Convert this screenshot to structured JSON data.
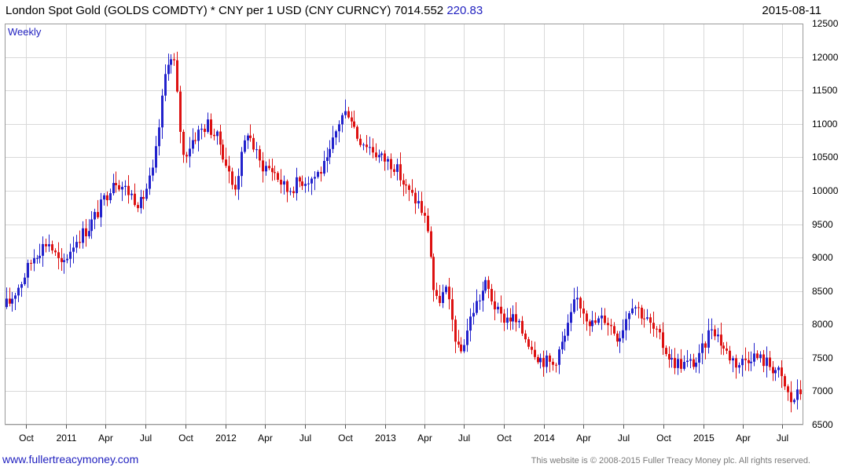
{
  "header": {
    "title": "London Spot Gold (GOLDS COMDTY) * CNY per 1 USD (CNY CURNCY) 7014.552",
    "last_change": "220.83",
    "date": "2015-08-11"
  },
  "period_label": "Weekly",
  "footer": {
    "website": "www.fullertreacymoney.com",
    "copyright": "This website is © 2008-2015 Fuller Treacy Money plc. All rights reserved."
  },
  "colors": {
    "up": "#2222cc",
    "down": "#dd1111",
    "grid": "#d9d9d9"
  },
  "chart_data": {
    "type": "candlestick",
    "frequency": "weekly",
    "xlabel": "",
    "ylabel": "",
    "ylim": [
      6500,
      12500
    ],
    "yticks": [
      6500,
      7000,
      7500,
      8000,
      8500,
      9000,
      9500,
      10000,
      10500,
      11000,
      11500,
      12000,
      12500
    ],
    "xticks": [
      {
        "label": "Oct",
        "date": "2010-10-01"
      },
      {
        "label": "2011",
        "date": "2011-01-01"
      },
      {
        "label": "Apr",
        "date": "2011-04-01"
      },
      {
        "label": "Jul",
        "date": "2011-07-01"
      },
      {
        "label": "Oct",
        "date": "2011-10-01"
      },
      {
        "label": "2012",
        "date": "2012-01-01"
      },
      {
        "label": "Apr",
        "date": "2012-04-01"
      },
      {
        "label": "Jul",
        "date": "2012-07-01"
      },
      {
        "label": "Oct",
        "date": "2012-10-01"
      },
      {
        "label": "2013",
        "date": "2013-01-01"
      },
      {
        "label": "Apr",
        "date": "2013-04-01"
      },
      {
        "label": "Jul",
        "date": "2013-07-01"
      },
      {
        "label": "Oct",
        "date": "2013-10-01"
      },
      {
        "label": "2014",
        "date": "2014-01-01"
      },
      {
        "label": "Apr",
        "date": "2014-04-01"
      },
      {
        "label": "Jul",
        "date": "2014-07-01"
      },
      {
        "label": "Oct",
        "date": "2014-10-01"
      },
      {
        "label": "2015",
        "date": "2015-01-01"
      },
      {
        "label": "Apr",
        "date": "2015-04-01"
      },
      {
        "label": "Jul",
        "date": "2015-07-01"
      }
    ],
    "series": [
      {
        "dates": [
          "2010-08-20",
          "2010-09-20",
          "2010-10-20",
          "2010-11-20",
          "2010-12-20",
          "2011-01-20",
          "2011-02-20",
          "2011-03-20",
          "2011-04-20",
          "2011-05-20",
          "2011-06-20",
          "2011-07-20",
          "2011-08-20",
          "2011-09-05",
          "2011-09-25",
          "2011-10-20",
          "2011-11-20",
          "2011-12-20",
          "2012-01-20",
          "2012-02-20",
          "2012-03-20",
          "2012-04-20",
          "2012-05-20",
          "2012-06-20",
          "2012-07-20",
          "2012-08-20",
          "2012-09-20",
          "2012-10-10",
          "2012-10-30",
          "2012-11-20",
          "2012-12-20",
          "2013-01-20",
          "2013-02-20",
          "2013-03-20",
          "2013-04-10",
          "2013-04-25",
          "2013-05-20",
          "2013-06-20",
          "2013-07-20",
          "2013-08-20",
          "2013-09-20",
          "2013-10-20",
          "2013-11-20",
          "2013-12-20",
          "2014-01-20",
          "2014-02-20",
          "2014-03-15",
          "2014-04-20",
          "2014-05-20",
          "2014-06-20",
          "2014-07-20",
          "2014-08-20",
          "2014-09-20",
          "2014-10-20",
          "2014-11-20",
          "2014-12-20",
          "2015-01-20",
          "2015-02-20",
          "2015-03-20",
          "2015-04-20",
          "2015-05-20",
          "2015-06-20",
          "2015-07-20",
          "2015-08-11"
        ],
        "close": [
          8300,
          8650,
          9050,
          9250,
          8850,
          9250,
          9450,
          9750,
          10200,
          10000,
          9800,
          10300,
          12000,
          11900,
          10500,
          10800,
          11000,
          10700,
          10000,
          10900,
          10400,
          10300,
          10000,
          10150,
          10200,
          10400,
          11100,
          11200,
          10800,
          10700,
          10500,
          10400,
          10000,
          9800,
          9400,
          8300,
          8500,
          7500,
          8200,
          8600,
          8100,
          8100,
          7800,
          7500,
          7400,
          7850,
          8400,
          8000,
          8100,
          7800,
          8350,
          8100,
          7800,
          7450,
          7400,
          7450,
          8000,
          7600,
          7400,
          7550,
          7450,
          7300,
          6850,
          7000
        ]
      }
    ]
  }
}
